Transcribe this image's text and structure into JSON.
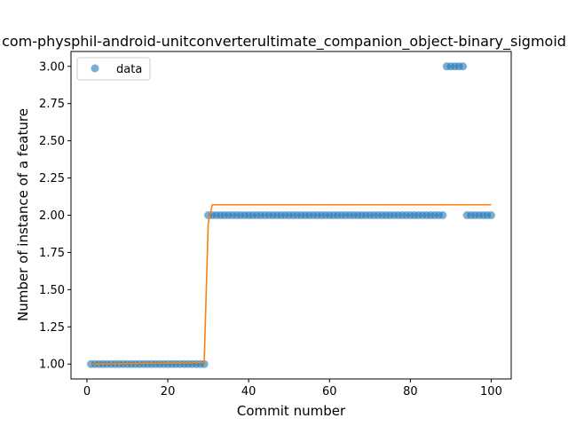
{
  "chart_data": {
    "type": "scatter",
    "title": "com-physphil-android-unitconverterultimate_companion_object-binary_sigmoid",
    "xlabel": "Commit number",
    "ylabel": "Number of instance of a feature",
    "xlim": [
      -3.95,
      104.95
    ],
    "ylim": [
      0.9,
      3.1
    ],
    "xticks": [
      0,
      20,
      40,
      60,
      80,
      100
    ],
    "yticks": [
      1.0,
      1.25,
      1.5,
      1.75,
      2.0,
      2.25,
      2.5,
      2.75,
      3.0
    ],
    "xtick_labels": [
      "0",
      "20",
      "40",
      "60",
      "80",
      "100"
    ],
    "ytick_labels": [
      "1.00",
      "1.25",
      "1.50",
      "1.75",
      "2.00",
      "2.25",
      "2.50",
      "2.75",
      "3.00"
    ],
    "grid": false,
    "legend_position": "top-left",
    "colors": {
      "data": "#1f77b4",
      "fit": "#ff7f0e"
    },
    "series": [
      {
        "name": "data",
        "kind": "scatter",
        "x": [
          1,
          2,
          3,
          4,
          5,
          6,
          7,
          8,
          9,
          10,
          11,
          12,
          13,
          14,
          15,
          16,
          17,
          18,
          19,
          20,
          21,
          22,
          23,
          24,
          25,
          26,
          27,
          28,
          29,
          30,
          31,
          32,
          33,
          34,
          35,
          36,
          37,
          38,
          39,
          40,
          41,
          42,
          43,
          44,
          45,
          46,
          47,
          48,
          49,
          50,
          51,
          52,
          53,
          54,
          55,
          56,
          57,
          58,
          59,
          60,
          61,
          62,
          63,
          64,
          65,
          66,
          67,
          68,
          69,
          70,
          71,
          72,
          73,
          74,
          75,
          76,
          77,
          78,
          79,
          80,
          81,
          82,
          83,
          84,
          85,
          86,
          87,
          88,
          89,
          90,
          91,
          92,
          93,
          94,
          95,
          96,
          97,
          98,
          99,
          100
        ],
        "y": [
          1,
          1,
          1,
          1,
          1,
          1,
          1,
          1,
          1,
          1,
          1,
          1,
          1,
          1,
          1,
          1,
          1,
          1,
          1,
          1,
          1,
          1,
          1,
          1,
          1,
          1,
          1,
          1,
          1,
          2,
          2,
          2,
          2,
          2,
          2,
          2,
          2,
          2,
          2,
          2,
          2,
          2,
          2,
          2,
          2,
          2,
          2,
          2,
          2,
          2,
          2,
          2,
          2,
          2,
          2,
          2,
          2,
          2,
          2,
          2,
          2,
          2,
          2,
          2,
          2,
          2,
          2,
          2,
          2,
          2,
          2,
          2,
          2,
          2,
          2,
          2,
          2,
          2,
          2,
          2,
          2,
          2,
          2,
          2,
          2,
          2,
          2,
          2,
          3,
          3,
          3,
          3,
          3,
          2,
          2,
          2,
          2,
          2,
          2,
          2
        ]
      },
      {
        "kind": "line",
        "x": [
          1,
          29,
          30,
          31,
          100
        ],
        "y": [
          1.0,
          1.01,
          1.95,
          2.07,
          2.07
        ]
      }
    ]
  }
}
